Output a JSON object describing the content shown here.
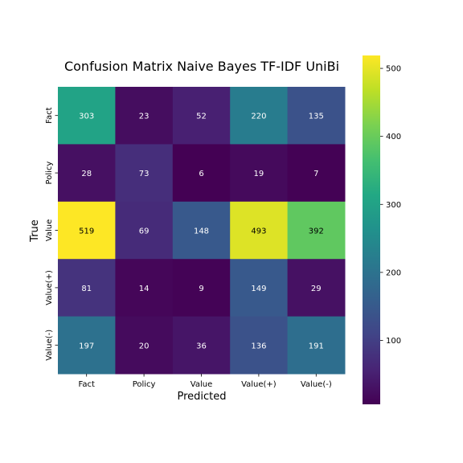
{
  "chart_data": {
    "type": "heatmap",
    "title": "Confusion Matrix Naive Bayes TF-IDF UniBi",
    "xlabel": "Predicted",
    "ylabel": "True",
    "x_categories": [
      "Fact",
      "Policy",
      "Value",
      "Value(+)",
      "Value(-)"
    ],
    "y_categories": [
      "Fact",
      "Policy",
      "Value",
      "Value(+)",
      "Value(-)"
    ],
    "values": [
      [
        303,
        23,
        52,
        220,
        135
      ],
      [
        28,
        73,
        6,
        19,
        7
      ],
      [
        519,
        69,
        148,
        493,
        392
      ],
      [
        81,
        14,
        9,
        149,
        29
      ],
      [
        197,
        20,
        36,
        136,
        191
      ]
    ],
    "colormap": "viridis",
    "colorbar": {
      "range": [
        6,
        519
      ],
      "ticks": [
        100,
        200,
        300,
        400,
        500
      ]
    },
    "annotation_colors": {
      "light_bg": "#000000",
      "dark_bg": "#ffffff"
    }
  }
}
